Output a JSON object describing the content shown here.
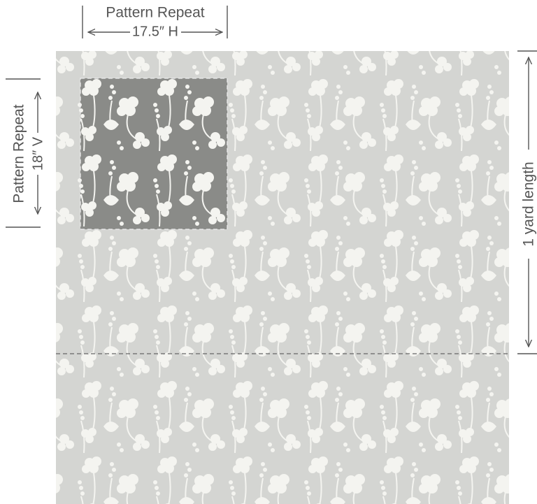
{
  "top_label": {
    "title": "Pattern Repeat",
    "measure": "17.5″ H"
  },
  "left_label": {
    "title": "Pattern Repeat",
    "measure": "18″ V"
  },
  "right_label": {
    "text": "1 yard length"
  }
}
